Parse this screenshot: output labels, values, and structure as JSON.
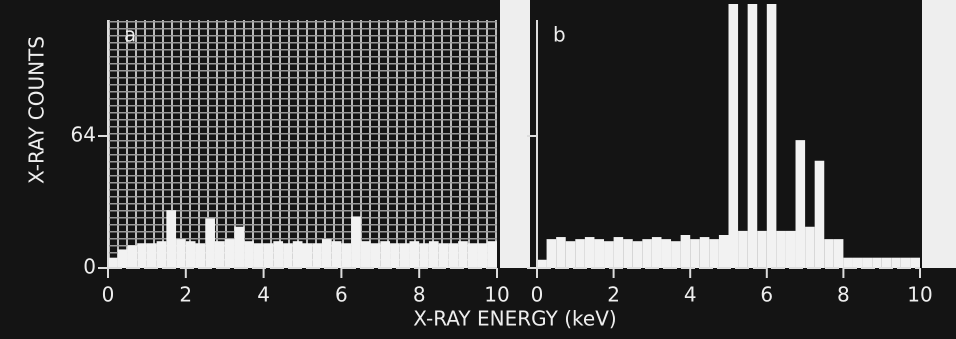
{
  "chart_data": [
    {
      "type": "histogram",
      "panel_label": "a",
      "ylabel": "X-RAY COUNTS",
      "xlabel": "X-RAY ENERGY (keV)",
      "bins": [
        0,
        0.25,
        0.5,
        0.75,
        1,
        1.25,
        1.5,
        1.75,
        2,
        2.25,
        2.5,
        2.75,
        3,
        3.25,
        3.5,
        3.75,
        4,
        4.25,
        4.5,
        4.75,
        5,
        5.25,
        5.5,
        5.75,
        6,
        6.25,
        6.5,
        6.75,
        7,
        7.25,
        7.5,
        7.75,
        8,
        8.25,
        8.5,
        8.75,
        9,
        9.25,
        9.5,
        9.75,
        10
      ],
      "values": [
        5,
        9,
        11,
        12,
        12,
        13,
        28,
        14,
        13,
        12,
        24,
        13,
        14,
        20,
        13,
        12,
        12,
        13,
        12,
        13,
        12,
        12,
        14,
        13,
        12,
        25,
        13,
        12,
        13,
        12,
        12,
        13,
        12,
        13,
        12,
        12,
        13,
        12,
        12,
        13
      ],
      "color": "#f2f2f2",
      "xlim": [
        0,
        10
      ],
      "ylim": [
        0,
        128
      ],
      "xticks": [
        0,
        2,
        4,
        6,
        8,
        10
      ],
      "yticks": [
        0,
        64
      ],
      "show_ytick_labels": true,
      "grid": true
    },
    {
      "type": "histogram",
      "panel_label": "b",
      "bins": [
        0,
        0.25,
        0.5,
        0.75,
        1,
        1.25,
        1.5,
        1.75,
        2,
        2.25,
        2.5,
        2.75,
        3,
        3.25,
        3.5,
        3.75,
        4,
        4.25,
        4.5,
        4.75,
        5,
        5.25,
        5.5,
        5.75,
        6,
        6.25,
        6.5,
        6.75,
        7,
        7.25,
        7.5,
        7.75,
        8,
        8.25,
        8.5,
        8.75,
        9,
        9.25,
        9.5,
        9.75,
        10
      ],
      "values": [
        4,
        14,
        15,
        13,
        14,
        15,
        14,
        13,
        15,
        14,
        13,
        14,
        15,
        14,
        13,
        16,
        14,
        15,
        14,
        16,
        128,
        18,
        128,
        18,
        128,
        18,
        18,
        62,
        20,
        52,
        14,
        14,
        5,
        5,
        5,
        5,
        5,
        5,
        5,
        5
      ],
      "color": "#f2f2f2",
      "xlim": [
        0,
        10
      ],
      "ylim": [
        0,
        128
      ],
      "xticks": [
        0,
        2,
        4,
        6,
        8,
        10
      ],
      "yticks": [
        0,
        64
      ],
      "show_ytick_labels": false,
      "grid": false
    }
  ]
}
